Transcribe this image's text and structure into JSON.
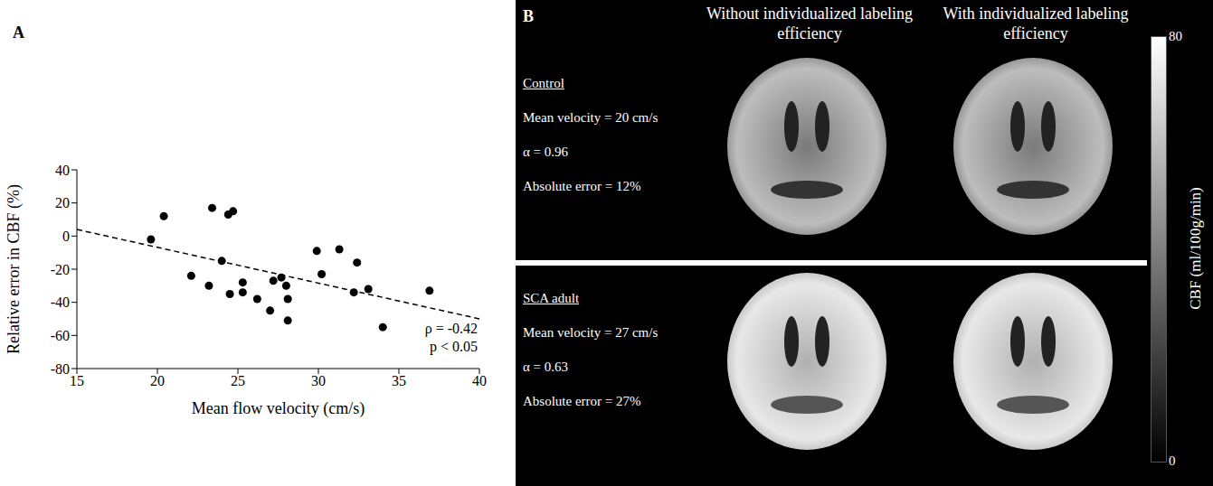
{
  "chart_data": {
    "panel": "A",
    "type": "scatter",
    "x_label": "Mean flow velocity (cm/s)",
    "y_label": "Relative error in CBF (%)",
    "x": [
      19.6,
      20.4,
      22.1,
      23.2,
      23.4,
      24.0,
      24.4,
      24.5,
      24.7,
      25.3,
      25.3,
      26.2,
      27.0,
      27.2,
      27.7,
      28.0,
      28.1,
      28.1,
      29.9,
      30.2,
      31.3,
      32.2,
      32.4,
      33.1,
      34.0,
      36.9
    ],
    "values": [
      -2,
      12,
      -24,
      -30,
      17,
      -15,
      13,
      -35,
      15,
      -28,
      -34,
      -38,
      -45,
      -27,
      -25,
      -30,
      -38,
      -51,
      -9,
      -23,
      -8,
      -34,
      -16,
      -32,
      -55,
      -33
    ],
    "color": "#000000",
    "marker": "circle",
    "xlim": [
      15,
      40
    ],
    "xticks": [
      15,
      20,
      25,
      30,
      35,
      40
    ],
    "ylim": [
      -80,
      40
    ],
    "yticks": [
      -80,
      -60,
      -40,
      -20,
      0,
      20,
      40
    ],
    "trend_line": {
      "x": [
        15,
        40
      ],
      "y": [
        4,
        -50
      ],
      "line_style": "dashed"
    },
    "annotations": [
      "ρ = -0.42",
      "p < 0.05"
    ]
  },
  "panel_b": {
    "letter": "B",
    "columns": [
      "Without individualized labeling efficiency",
      "With individualized labeling efficiency"
    ],
    "rows": [
      {
        "title": "Control",
        "lines": [
          "Mean velocity = 20 cm/s",
          "α = 0.96",
          "Absolute error = 12%"
        ]
      },
      {
        "title": "SCA adult",
        "lines": [
          "Mean velocity = 27 cm/s",
          "α = 0.63",
          "Absolute error = 27%"
        ]
      }
    ],
    "colorbar": {
      "range": [
        0,
        80
      ],
      "ticks": [
        0,
        80
      ],
      "title": "CBF (ml/100g/min)"
    }
  }
}
